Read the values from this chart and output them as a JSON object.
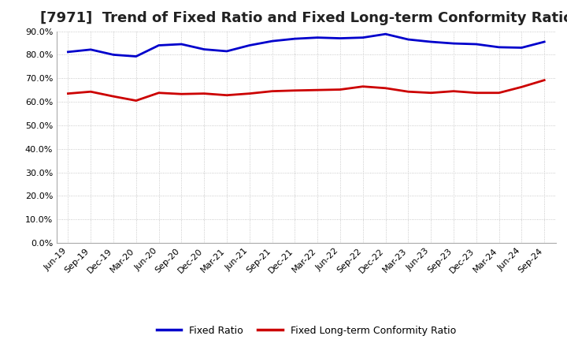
{
  "title": "[7971]  Trend of Fixed Ratio and Fixed Long-term Conformity Ratio",
  "x_labels": [
    "Jun-19",
    "Sep-19",
    "Dec-19",
    "Mar-20",
    "Jun-20",
    "Sep-20",
    "Dec-20",
    "Mar-21",
    "Jun-21",
    "Sep-21",
    "Dec-21",
    "Mar-22",
    "Jun-22",
    "Sep-22",
    "Dec-22",
    "Mar-23",
    "Jun-23",
    "Sep-23",
    "Dec-23",
    "Mar-24",
    "Jun-24",
    "Sep-24"
  ],
  "fixed_ratio": [
    0.812,
    0.822,
    0.8,
    0.793,
    0.84,
    0.845,
    0.823,
    0.815,
    0.84,
    0.858,
    0.868,
    0.873,
    0.87,
    0.873,
    0.888,
    0.865,
    0.855,
    0.848,
    0.845,
    0.832,
    0.83,
    0.855
  ],
  "fixed_lt_ratio": [
    0.635,
    0.643,
    0.623,
    0.605,
    0.638,
    0.633,
    0.635,
    0.628,
    0.635,
    0.645,
    0.648,
    0.65,
    0.652,
    0.665,
    0.658,
    0.643,
    0.638,
    0.645,
    0.638,
    0.638,
    0.663,
    0.692
  ],
  "fixed_ratio_color": "#0000CC",
  "fixed_lt_ratio_color": "#CC0000",
  "ylim": [
    0.0,
    0.9
  ],
  "yticks": [
    0.0,
    0.1,
    0.2,
    0.3,
    0.4,
    0.5,
    0.6,
    0.7,
    0.8,
    0.9
  ],
  "background_color": "#FFFFFF",
  "plot_bg_color": "#FFFFFF",
  "grid_color": "#BBBBBB",
  "title_fontsize": 13,
  "tick_fontsize": 8,
  "legend_fontsize": 9,
  "linewidth": 2.0
}
